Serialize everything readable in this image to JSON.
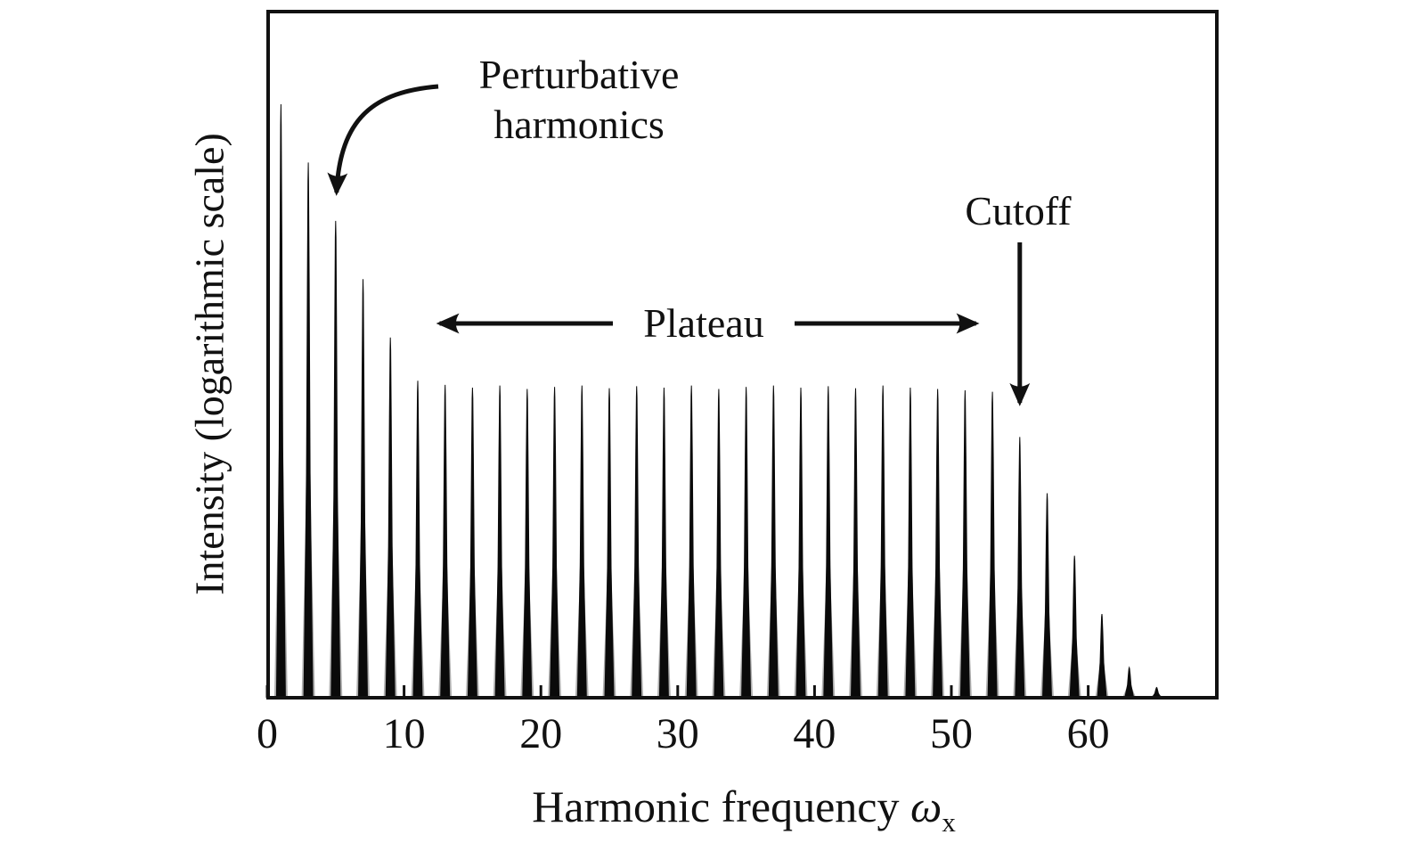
{
  "figure": {
    "background": "#ffffff",
    "ink": "#111111",
    "gray_pedestal": "#6b6b6b"
  },
  "chart_data": {
    "type": "line",
    "title": "",
    "description": "Schematic high-harmonic generation spectrum: intensity versus harmonic frequency with perturbative region, plateau and cutoff",
    "ylabel": "Intensity (logarithmic scale)",
    "xlabel": "Harmonic frequency ωₓ",
    "xlabel_parts": {
      "text": "Harmonic frequency ",
      "symbol": "ω",
      "subscript": "x"
    },
    "x_ticks": [
      0,
      10,
      20,
      30,
      40,
      50,
      60
    ],
    "xlim": [
      0,
      69.5
    ],
    "yscale": "logarithmic (schematic, no numeric ticks)",
    "grid": false,
    "legend": false,
    "harmonics": [
      1,
      3,
      5,
      7,
      9,
      11,
      13,
      15,
      17,
      19,
      21,
      23,
      25,
      27,
      29,
      31,
      33,
      35,
      37,
      39,
      41,
      43,
      45,
      47,
      49,
      51,
      53,
      55,
      57,
      59,
      61,
      63,
      65
    ],
    "heights_normalized": [
      0.865,
      0.78,
      0.695,
      0.61,
      0.525,
      0.462,
      0.456,
      0.452,
      0.455,
      0.45,
      0.453,
      0.455,
      0.451,
      0.454,
      0.452,
      0.455,
      0.45,
      0.453,
      0.455,
      0.452,
      0.454,
      0.451,
      0.455,
      0.452,
      0.45,
      0.448,
      0.446,
      0.38,
      0.298,
      0.207,
      0.122,
      0.044,
      0.015
    ],
    "annotations": {
      "perturbative": {
        "line1": "Perturbative",
        "line2": "harmonics",
        "target_harmonic": 5
      },
      "plateau": {
        "label": "Plateau",
        "span_harmonics": [
          12.6,
          51.8
        ],
        "arrow_y": 363
      },
      "cutoff": {
        "label": "Cutoff",
        "target_harmonic": 55
      }
    }
  }
}
